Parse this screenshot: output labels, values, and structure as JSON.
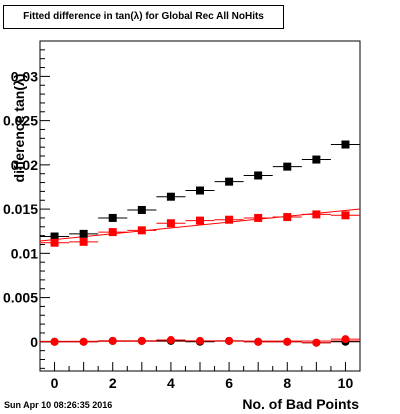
{
  "chart_data": {
    "type": "scatter",
    "title": "Fitted difference in tan(λ) for Global Rec All NoHits",
    "xlabel": "No. of Bad Points",
    "ylabel": "difference tan(λ)",
    "xlim": [
      -0.5,
      10.5
    ],
    "ylim": [
      -0.0033,
      0.034
    ],
    "x_ticks": [
      0,
      2,
      4,
      6,
      8,
      10
    ],
    "x_tick_labels": [
      "0",
      "2",
      "4",
      "6",
      "8",
      "10"
    ],
    "y_ticks": [
      0,
      0.005,
      0.01,
      0.015,
      0.02,
      0.025,
      0.03
    ],
    "y_tick_labels": [
      "0",
      "0.005",
      "0.01",
      "0.015",
      "0.02",
      "0.025",
      "0.03"
    ],
    "grid": false,
    "legend": "none",
    "x": [
      0,
      1,
      2,
      3,
      4,
      5,
      6,
      7,
      8,
      9,
      10
    ],
    "series": [
      {
        "marker": "square",
        "color": "#000000",
        "values": [
          0.0119,
          0.0122,
          0.014,
          0.0149,
          0.0164,
          0.0171,
          0.0181,
          0.0188,
          0.0198,
          0.0206,
          0.0223
        ]
      },
      {
        "marker": "square",
        "color": "#ff0000",
        "fit": true,
        "values": [
          0.0112,
          0.0113,
          0.0124,
          0.0126,
          0.0134,
          0.0137,
          0.0138,
          0.014,
          0.0141,
          0.0144,
          0.0143
        ]
      },
      {
        "marker": "circle",
        "color": "#000000",
        "values": [
          0.0,
          0.0,
          0.0001,
          0.0001,
          0.0001,
          0.0,
          0.0001,
          0.0,
          0.0,
          -0.0001,
          0.0
        ]
      },
      {
        "marker": "circle",
        "color": "#ff0000",
        "fit": true,
        "values": [
          0.0,
          0.0,
          0.0001,
          0.0001,
          0.0002,
          0.0001,
          0.0001,
          0.0,
          0.0,
          -0.0001,
          0.0003
        ]
      }
    ]
  },
  "footer": {
    "timestamp": "Sun Apr 10 08:26:35 2016"
  }
}
